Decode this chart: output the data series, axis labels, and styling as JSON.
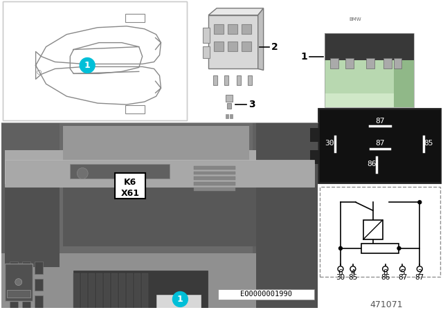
{
  "bg_color": "#ffffff",
  "cyan_badge": "#00bfd8",
  "badge_text_color": "#ffffff",
  "relay_green": "#b8d8b0",
  "relay_gray1": "#c8c8c8",
  "relay_gray2": "#a0a0a0",
  "relay_dark": "#404040",
  "pin_diag_bg": "#111111",
  "pin_diag_fg": "#ffffff",
  "circuit_border": "#909090",
  "photo_dark": "#4a4a4a",
  "photo_mid": "#787878",
  "photo_light": "#aaaaaa",
  "dash_color": "#909090",
  "callout_k6": "K6",
  "callout_x61": "X61",
  "eo_code": "EO0000001990",
  "part_number": "471071",
  "label_line_color": "#000000",
  "car_line": "#888888",
  "box_border": "#cccccc"
}
